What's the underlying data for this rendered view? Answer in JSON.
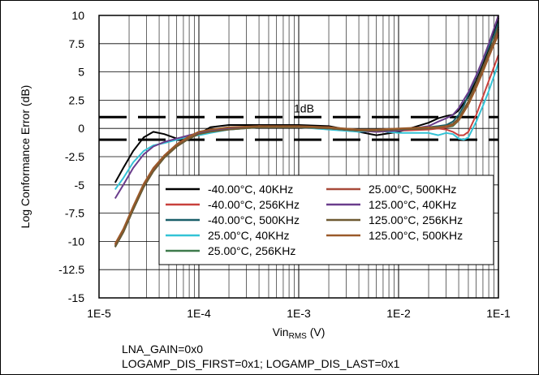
{
  "chart_data": {
    "type": "line",
    "xscale": "log",
    "xlim": [
      1e-05,
      0.1
    ],
    "ylim": [
      -15,
      10
    ],
    "xticks": [
      {
        "value": 1e-05,
        "label": "1E-5"
      },
      {
        "value": 0.0001,
        "label": "1E-4"
      },
      {
        "value": 0.001,
        "label": "1E-3"
      },
      {
        "value": 0.01,
        "label": "1E-2"
      },
      {
        "value": 0.1,
        "label": "1E-1"
      }
    ],
    "yticks": [
      {
        "value": 10,
        "label": "10"
      },
      {
        "value": 7.5,
        "label": "7.5"
      },
      {
        "value": 5,
        "label": "5"
      },
      {
        "value": 2.5,
        "label": "2.5"
      },
      {
        "value": 0,
        "label": "0"
      },
      {
        "value": -2.5,
        "label": "-2.5"
      },
      {
        "value": -5,
        "label": "-5"
      },
      {
        "value": -7.5,
        "label": "-7.5"
      },
      {
        "value": -10,
        "label": "-10"
      },
      {
        "value": -12.5,
        "label": "-12.5"
      },
      {
        "value": -15,
        "label": "-15"
      }
    ],
    "xlabel": {
      "main": "Vin",
      "sub": "RMS",
      "unit": " (V)"
    },
    "ylabel": "Log Conformance Error (dB)",
    "grid": true,
    "legend_position": "lower-right",
    "limits": {
      "values": [
        1,
        -1
      ],
      "label": "1dB",
      "color": "#000000"
    },
    "series": [
      {
        "name": "-40.00°C, 40KHz",
        "color": "#000000",
        "x": [
          1.45e-05,
          1.75e-05,
          2.2e-05,
          2.8e-05,
          3.5e-05,
          4.5e-05,
          6e-05,
          8e-05,
          0.0001,
          0.00013,
          0.0002,
          0.0004,
          0.001,
          0.002,
          0.004,
          0.006,
          0.01,
          0.02,
          0.025,
          0.03,
          0.035,
          0.04,
          0.05,
          0.06,
          0.07,
          0.08,
          0.09,
          0.1
        ],
        "y": [
          -4.8,
          -3.5,
          -2,
          -0.8,
          -0.3,
          -0.5,
          -0.9,
          -0.7,
          -0.5,
          0.1,
          0.3,
          0.3,
          0.3,
          0.2,
          -0.3,
          -0.6,
          -0.3,
          0.5,
          0.9,
          1.1,
          1.2,
          1.6,
          2.8,
          4.2,
          5.6,
          7,
          8.4,
          9.8
        ]
      },
      {
        "name": "-40.00°C, 256KHz",
        "color": "#c8403c",
        "x": [
          1.45e-05,
          1.75e-05,
          2.2e-05,
          2.8e-05,
          3.5e-05,
          4.5e-05,
          6e-05,
          8e-05,
          0.0001,
          0.00013,
          0.0002,
          0.0004,
          0.001,
          0.002,
          0.004,
          0.006,
          0.01,
          0.02,
          0.025,
          0.03,
          0.035,
          0.04,
          0.045,
          0.05,
          0.06,
          0.07,
          0.08,
          0.09,
          0.1
        ],
        "y": [
          -10.3,
          -9,
          -7,
          -5,
          -3.6,
          -2.4,
          -1.4,
          -0.7,
          -0.3,
          -0.2,
          0,
          0.2,
          0.1,
          0.1,
          -0.2,
          -0.3,
          -0.2,
          -0.1,
          0,
          -0.1,
          -0.3,
          -0.6,
          -0.6,
          -0.3,
          1.2,
          2.8,
          4.2,
          5.4,
          6.5
        ]
      },
      {
        "name": "-40.00°C, 500KHz",
        "color": "#1a5f6a",
        "x": [
          1.45e-05,
          1.75e-05,
          2.2e-05,
          2.8e-05,
          3.5e-05,
          4.5e-05,
          6e-05,
          8e-05,
          0.0001,
          0.00013,
          0.0002,
          0.0004,
          0.001,
          0.002,
          0.004,
          0.006,
          0.01,
          0.02,
          0.025,
          0.03,
          0.035,
          0.04,
          0.045,
          0.05,
          0.06,
          0.07,
          0.08,
          0.09,
          0.1
        ],
        "y": [
          -10.5,
          -9.2,
          -7.2,
          -5.2,
          -3.8,
          -2.6,
          -1.6,
          -0.9,
          -0.5,
          -0.3,
          -0.1,
          0.1,
          0.1,
          0,
          -0.1,
          -0.1,
          -0.1,
          0.1,
          0.2,
          0.3,
          0.6,
          1.2,
          2,
          3,
          4.6,
          6,
          7.2,
          8.2,
          9.4
        ]
      },
      {
        "name": "25.00°C, 40KHz",
        "color": "#33c3d6",
        "x": [
          1.45e-05,
          1.75e-05,
          2.2e-05,
          2.8e-05,
          3.5e-05,
          4.5e-05,
          6e-05,
          8e-05,
          0.0001,
          0.00013,
          0.0002,
          0.0004,
          0.001,
          0.002,
          0.004,
          0.006,
          0.01,
          0.02,
          0.025,
          0.03,
          0.035,
          0.04,
          0.045,
          0.05,
          0.06,
          0.07,
          0.08,
          0.09,
          0.1
        ],
        "y": [
          -5.4,
          -4.4,
          -3,
          -2,
          -1.5,
          -1.3,
          -1,
          -0.7,
          -0.6,
          -0.4,
          -0.1,
          0.1,
          0.1,
          -0.1,
          -0.3,
          -0.2,
          -0.4,
          -0.4,
          -0.6,
          -0.4,
          -0.5,
          -0.9,
          -1,
          -0.8,
          0.6,
          2,
          3.3,
          4.6,
          5.8
        ]
      },
      {
        "name": "25.00°C, 256KHz",
        "color": "#3e7a4c",
        "x": [
          1.45e-05,
          1.75e-05,
          2.2e-05,
          2.8e-05,
          3.5e-05,
          4.5e-05,
          6e-05,
          8e-05,
          0.0001,
          0.00013,
          0.0002,
          0.0004,
          0.001,
          0.002,
          0.004,
          0.006,
          0.01,
          0.02,
          0.025,
          0.03,
          0.035,
          0.04,
          0.05,
          0.06,
          0.07,
          0.08,
          0.09,
          0.1
        ],
        "y": [
          -10.4,
          -9.1,
          -7.1,
          -5.1,
          -3.7,
          -2.5,
          -1.5,
          -0.8,
          -0.4,
          -0.2,
          0,
          0.1,
          0.1,
          0,
          -0.2,
          -0.2,
          -0.1,
          0,
          0.1,
          0.1,
          0.2,
          0.7,
          2.2,
          3.8,
          5.2,
          6.5,
          7.6,
          8.8
        ]
      },
      {
        "name": "25.00°C, 500KHz",
        "color": "#a84a3a",
        "x": [
          1.45e-05,
          1.75e-05,
          2.2e-05,
          2.8e-05,
          3.5e-05,
          4.5e-05,
          6e-05,
          8e-05,
          0.0001,
          0.00013,
          0.0002,
          0.0004,
          0.001,
          0.002,
          0.004,
          0.006,
          0.01,
          0.02,
          0.025,
          0.03,
          0.035,
          0.04,
          0.05,
          0.06,
          0.07,
          0.08,
          0.09,
          0.1
        ],
        "y": [
          -10.3,
          -9,
          -7,
          -5,
          -3.6,
          -2.5,
          -1.5,
          -0.8,
          -0.4,
          -0.2,
          0,
          0.1,
          0.1,
          0,
          -0.2,
          -0.2,
          -0.1,
          0,
          0,
          0.1,
          0.3,
          0.8,
          2.3,
          3.9,
          5.3,
          6.6,
          7.7,
          8.5
        ]
      },
      {
        "name": "125.00°C, 40KHz",
        "color": "#6a3d8c",
        "x": [
          1.45e-05,
          1.75e-05,
          2.2e-05,
          2.8e-05,
          3.5e-05,
          4.5e-05,
          6e-05,
          8e-05,
          0.0001,
          0.00013,
          0.0002,
          0.0004,
          0.001,
          0.002,
          0.004,
          0.006,
          0.01,
          0.02,
          0.025,
          0.03,
          0.035,
          0.04,
          0.05,
          0.06,
          0.07,
          0.08,
          0.09,
          0.1
        ],
        "y": [
          -6.2,
          -5,
          -3.5,
          -2.3,
          -1.6,
          -1.2,
          -0.9,
          -0.6,
          -0.4,
          -0.2,
          0,
          0.2,
          0.1,
          0,
          -0.2,
          -0.3,
          -0.2,
          0.2,
          0.6,
          0.9,
          1.2,
          1.8,
          3.2,
          4.7,
          6.1,
          7.5,
          8.8,
          10
        ]
      },
      {
        "name": "125.00°C, 256KHz",
        "color": "#6e5a32",
        "x": [
          1.45e-05,
          1.75e-05,
          2.2e-05,
          2.8e-05,
          3.5e-05,
          4.5e-05,
          6e-05,
          8e-05,
          0.0001,
          0.00013,
          0.0002,
          0.0004,
          0.001,
          0.002,
          0.004,
          0.006,
          0.01,
          0.02,
          0.025,
          0.03,
          0.035,
          0.04,
          0.05,
          0.06,
          0.07,
          0.08,
          0.09,
          0.1
        ],
        "y": [
          -10.5,
          -9.2,
          -7.2,
          -5.2,
          -3.8,
          -2.6,
          -1.6,
          -0.9,
          -0.5,
          -0.3,
          -0.1,
          0.1,
          0.1,
          0,
          -0.2,
          -0.2,
          -0.1,
          0,
          0.1,
          0.2,
          0.4,
          0.9,
          2.4,
          4,
          5.4,
          6.7,
          7.8,
          9
        ]
      },
      {
        "name": "125.00°C, 500KHz",
        "color": "#9a5a2a",
        "x": [
          1.45e-05,
          1.75e-05,
          2.2e-05,
          2.8e-05,
          3.5e-05,
          4.5e-05,
          6e-05,
          8e-05,
          0.0001,
          0.00013,
          0.0002,
          0.0004,
          0.001,
          0.002,
          0.004,
          0.006,
          0.01,
          0.02,
          0.025,
          0.03,
          0.035,
          0.04,
          0.05,
          0.06,
          0.07,
          0.08,
          0.09,
          0.1
        ],
        "y": [
          -10.2,
          -8.9,
          -6.9,
          -4.9,
          -3.5,
          -2.4,
          -1.4,
          -0.7,
          -0.3,
          -0.1,
          0.1,
          0.2,
          0.2,
          0.1,
          -0.1,
          -0.1,
          0,
          0.1,
          0.1,
          0.2,
          0.3,
          0.7,
          2.1,
          3.6,
          5,
          6.3,
          7.4,
          8.3
        ]
      }
    ]
  },
  "notes": {
    "line1": "LNA_GAIN=0x0",
    "line2": "LOGAMP_DIS_FIRST=0x1; LOGAMP_DIS_LAST=0x1"
  }
}
